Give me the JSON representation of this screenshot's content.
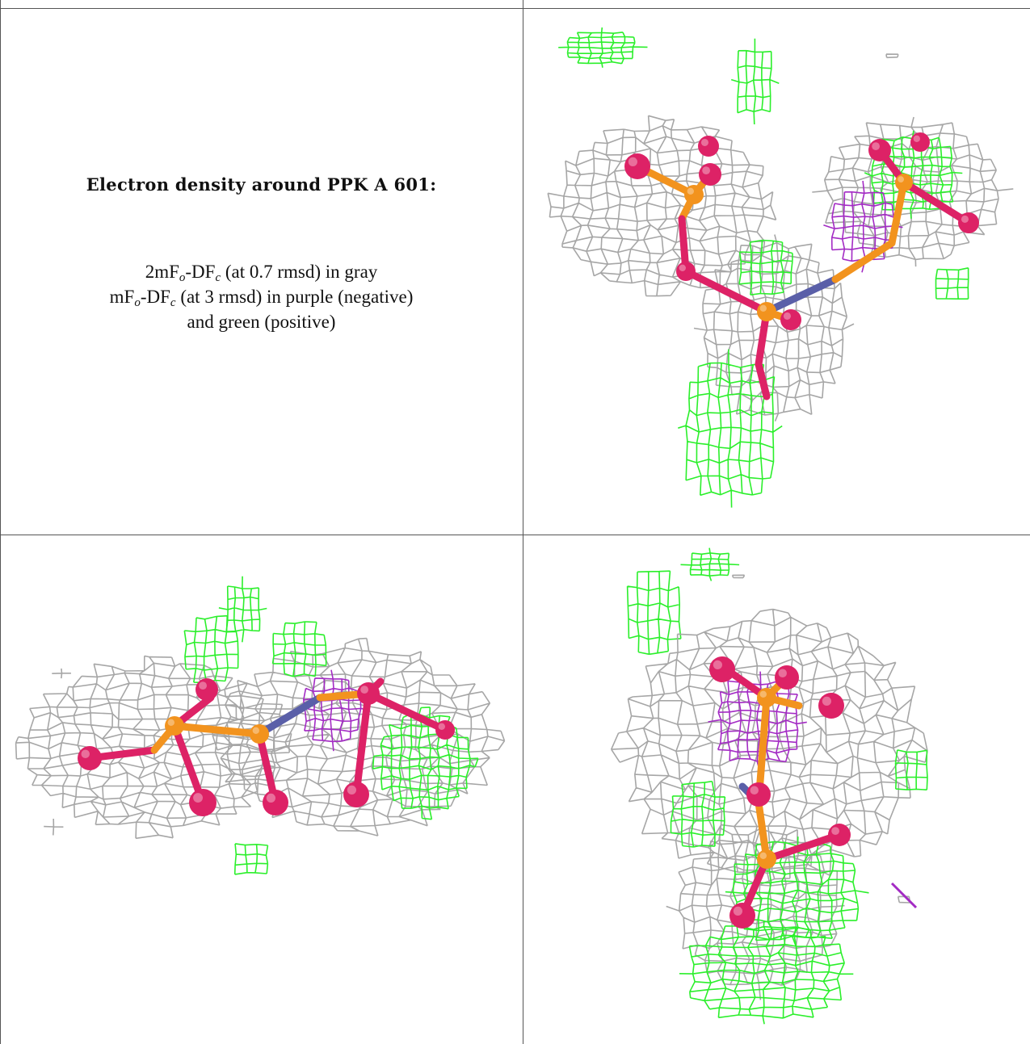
{
  "caption": {
    "title": "Electron density around PPK A 601:",
    "line1": {
      "pre": "2mF",
      "sub1": "o",
      "mid": "-DF",
      "sub2": "c",
      "post": " (at 0.7 rmsd) in gray"
    },
    "line2": {
      "pre": "mF",
      "sub1": "o",
      "mid": "-DF",
      "sub2": "c",
      "post": " (at 3 rmsd) in purple (negative)"
    },
    "line3": "and green (positive)"
  },
  "colors": {
    "mesh_2fofc": "#a6a6a6",
    "mesh_positive": "#2bef2b",
    "mesh_negative": "#a32bc4",
    "carbon_phosphorus": "#f2931e",
    "oxygen": "#dd2266",
    "nitrogen": "#5a5fa8"
  },
  "panels": [
    "view-1",
    "view-2",
    "view-3"
  ]
}
